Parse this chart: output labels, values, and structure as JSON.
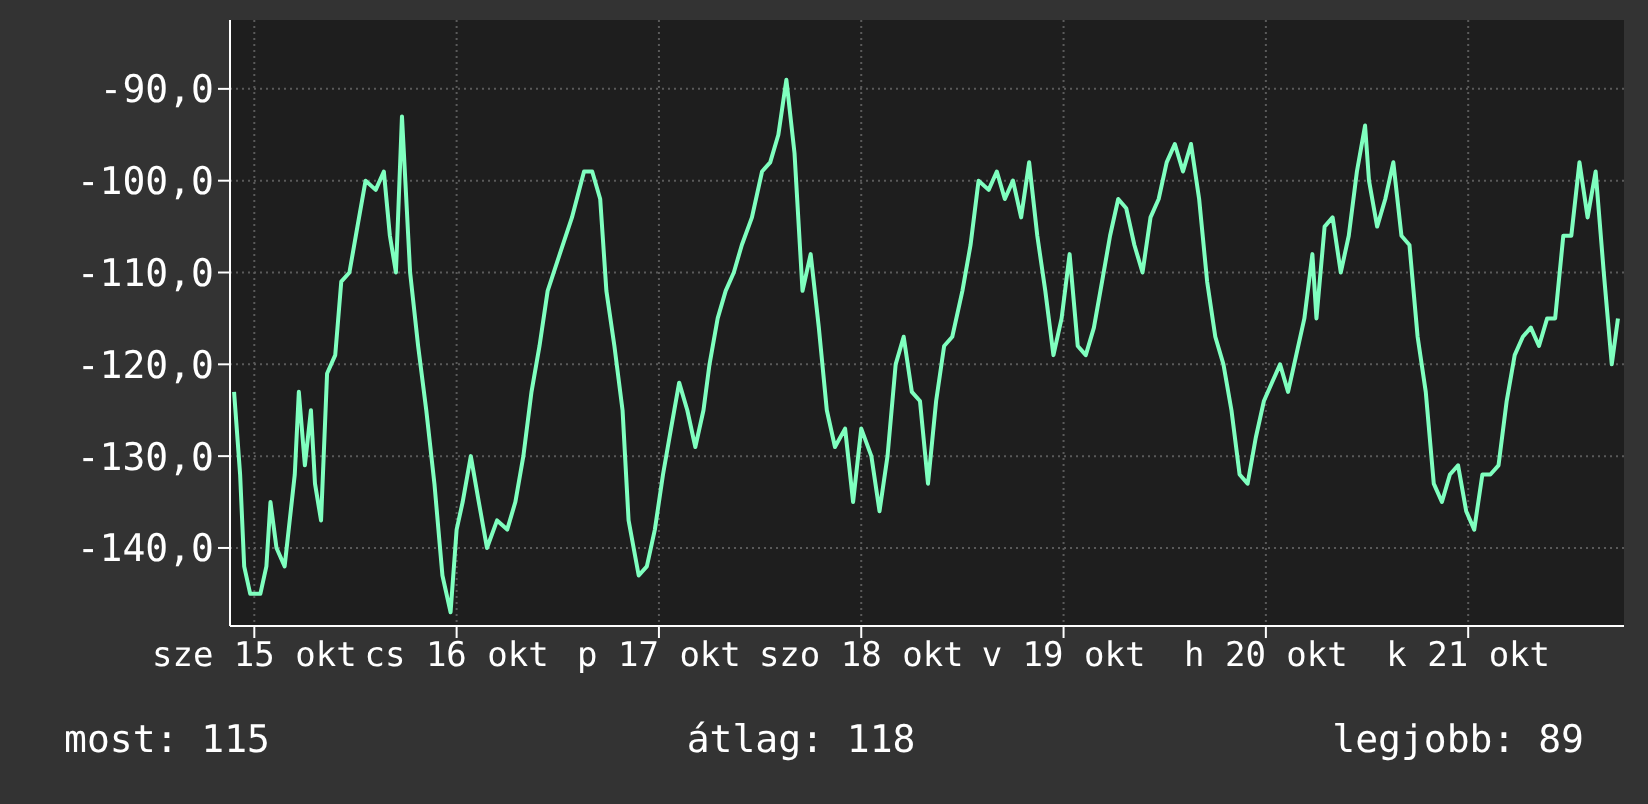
{
  "chart_data": {
    "type": "line",
    "xlim": [
      "--10-14T21:07",
      "--10-21T18:29"
    ],
    "ylim": [
      -148.5,
      -82.5
    ],
    "xticks": [
      {
        "value": "--10-15",
        "label": "sze 15 okt"
      },
      {
        "value": "--10-16",
        "label": "cs 16 okt"
      },
      {
        "value": "--10-17",
        "label": "p 17 okt"
      },
      {
        "value": "--10-18",
        "label": "szo 18 okt"
      },
      {
        "value": "--10-19",
        "label": "v 19 okt"
      },
      {
        "value": "--10-20",
        "label": "h 20 okt"
      },
      {
        "value": "--10-21",
        "label": "k 21 okt"
      }
    ],
    "yticks": [
      {
        "value": -140,
        "label": "-140,0"
      },
      {
        "value": -130,
        "label": "-130,0"
      },
      {
        "value": -120,
        "label": "-120,0"
      },
      {
        "value": -110,
        "label": "-110,0"
      },
      {
        "value": -100,
        "label": "-100,0"
      },
      {
        "value": -90,
        "label": "-90,0"
      }
    ],
    "grid": true,
    "marker": "none",
    "line_style": "solid",
    "annotations": [
      "most: 115",
      "átlag: 118",
      "legjobb: 89"
    ],
    "series": [
      {
        "color": "#7fffbf",
        "x": [
          "--10-14T21:36",
          "--10-14T22:19",
          "--10-14T22:48",
          "--10-14T23:31",
          "--10-15T00:43",
          "--10-15T01:26",
          "--10-15T01:55",
          "--10-15T02:38",
          "--10-15T03:36",
          "--10-15T04:48",
          "--10-15T05:17",
          "--10-15T06:00",
          "--10-15T06:43",
          "--10-15T07:12",
          "--10-15T07:55",
          "--10-15T08:38",
          "--10-15T09:36",
          "--10-15T10:19",
          "--10-15T11:17",
          "--10-15T12:14",
          "--10-15T13:12",
          "--10-15T14:24",
          "--10-15T15:22",
          "--10-15T16:05",
          "--10-15T16:48",
          "--10-15T17:31",
          "--10-15T18:29",
          "--10-15T19:26",
          "--10-15T20:24",
          "--10-15T21:22",
          "--10-15T22:19",
          "--10-15T23:17",
          "--10-16T00:00",
          "--10-16T00:43",
          "--10-16T01:41",
          "--10-16T02:38",
          "--10-16T03:36",
          "--10-16T04:48",
          "--10-16T06:00",
          "--10-16T06:58",
          "--10-16T07:55",
          "--10-16T08:53",
          "--10-16T09:50",
          "--10-16T10:48",
          "--10-16T12:14",
          "--10-16T13:41",
          "--10-16T15:07",
          "--10-16T16:05",
          "--10-16T17:02",
          "--10-16T17:46",
          "--10-16T18:43",
          "--10-16T19:41",
          "--10-16T20:24",
          "--10-16T21:36",
          "--10-16T22:34",
          "--10-16T23:31",
          "--10-17T00:29",
          "--10-17T01:26",
          "--10-17T02:24",
          "--10-17T03:22",
          "--10-17T04:19",
          "--10-17T05:17",
          "--10-17T06:00",
          "--10-17T06:58",
          "--10-17T07:55",
          "--10-17T08:53",
          "--10-17T09:50",
          "--10-17T11:02",
          "--10-17T12:14",
          "--10-17T13:12",
          "--10-17T14:10",
          "--10-17T15:07",
          "--10-17T16:05",
          "--10-17T17:02",
          "--10-17T18:00",
          "--10-17T18:58",
          "--10-17T19:55",
          "--10-17T20:53",
          "--10-17T22:05",
          "--10-17T23:02",
          "--10-18T00:00",
          "--10-18T01:12",
          "--10-18T02:10",
          "--10-18T03:07",
          "--10-18T04:05",
          "--10-18T05:02",
          "--10-18T06:00",
          "--10-18T06:58",
          "--10-18T07:55",
          "--10-18T08:53",
          "--10-18T09:50",
          "--10-18T10:48",
          "--10-18T12:00",
          "--10-18T12:58",
          "--10-18T13:55",
          "--10-18T15:07",
          "--10-18T16:05",
          "--10-18T17:02",
          "--10-18T18:00",
          "--10-18T18:58",
          "--10-18T19:55",
          "--10-18T20:53",
          "--10-18T21:50",
          "--10-18T22:48",
          "--10-18T23:46",
          "--10-19T00:43",
          "--10-19T01:41",
          "--10-19T02:38",
          "--10-19T03:36",
          "--10-19T04:34",
          "--10-19T05:31",
          "--10-19T06:29",
          "--10-19T07:26",
          "--10-19T08:24",
          "--10-19T09:22",
          "--10-19T10:19",
          "--10-19T11:17",
          "--10-19T12:14",
          "--10-19T13:12",
          "--10-19T14:10",
          "--10-19T15:07",
          "--10-19T16:05",
          "--10-19T17:02",
          "--10-19T18:00",
          "--10-19T18:58",
          "--10-19T19:55",
          "--10-19T20:53",
          "--10-19T21:50",
          "--10-19T22:48",
          "--10-19T23:46",
          "--10-20T00:43",
          "--10-20T01:41",
          "--10-20T02:38",
          "--10-20T03:36",
          "--10-20T04:34",
          "--10-20T05:31",
          "--10-20T06:00",
          "--10-20T06:58",
          "--10-20T07:55",
          "--10-20T08:53",
          "--10-20T09:50",
          "--10-20T10:48",
          "--10-20T11:46",
          "--10-20T12:14",
          "--10-20T13:12",
          "--10-20T14:10",
          "--10-20T15:07",
          "--10-20T16:05",
          "--10-20T17:02",
          "--10-20T18:00",
          "--10-20T18:58",
          "--10-20T19:55",
          "--10-20T20:53",
          "--10-20T21:50",
          "--10-20T22:48",
          "--10-20T23:46",
          "--10-21T00:43",
          "--10-21T01:41",
          "--10-21T02:38",
          "--10-21T03:36",
          "--10-21T04:34",
          "--10-21T05:31",
          "--10-21T06:29",
          "--10-21T07:26",
          "--10-21T08:24",
          "--10-21T09:22",
          "--10-21T10:19",
          "--10-21T11:17",
          "--10-21T12:14",
          "--10-21T13:12",
          "--10-21T14:10",
          "--10-21T15:07",
          "--10-21T16:05",
          "--10-21T17:02",
          "--10-21T17:46"
        ],
        "values": [
          -123,
          -132,
          -142,
          -145,
          -145,
          -142,
          -135,
          -140,
          -142,
          -132,
          -123,
          -131,
          -125,
          -133,
          -137,
          -121,
          -119,
          -111,
          -110,
          -105,
          -100,
          -101,
          -99,
          -106,
          -110,
          -93,
          -110,
          -118,
          -125,
          -133,
          -143,
          -147,
          -138,
          -135,
          -130,
          -135,
          -140,
          -137,
          -138,
          -135,
          -130,
          -123,
          -118,
          -112,
          -108,
          -104,
          -99,
          -99,
          -102,
          -112,
          -118,
          -125,
          -137,
          -143,
          -142,
          -138,
          -132,
          -127,
          -122,
          -125,
          -129,
          -125,
          -120,
          -115,
          -112,
          -110,
          -107,
          -104,
          -99,
          -98,
          -95,
          -89,
          -97,
          -112,
          -108,
          -116,
          -125,
          -129,
          -127,
          -135,
          -127,
          -130,
          -136,
          -130,
          -120,
          -117,
          -123,
          -124,
          -133,
          -124,
          -118,
          -117,
          -112,
          -107,
          -100,
          -101,
          -99,
          -102,
          -100,
          -104,
          -98,
          -106,
          -112,
          -119,
          -115,
          -108,
          -118,
          -119,
          -116,
          -111,
          -106,
          -102,
          -103,
          -107,
          -110,
          -104,
          -102,
          -98,
          -96,
          -99,
          -96,
          -102,
          -111,
          -117,
          -120,
          -125,
          -132,
          -133,
          -128,
          -124,
          -122,
          -120,
          -123,
          -119,
          -115,
          -108,
          -115,
          -105,
          -104,
          -110,
          -106,
          -99,
          -94,
          -100,
          -105,
          -102,
          -98,
          -106,
          -107,
          -117,
          -123,
          -133,
          -135,
          -132,
          -131,
          -136,
          -138,
          -132,
          -132,
          -131,
          -124,
          -119,
          -117,
          -116,
          -118,
          -115,
          -115,
          -106,
          -106,
          -98,
          -104,
          -99,
          -110,
          -120,
          -115
        ]
      }
    ]
  }
}
